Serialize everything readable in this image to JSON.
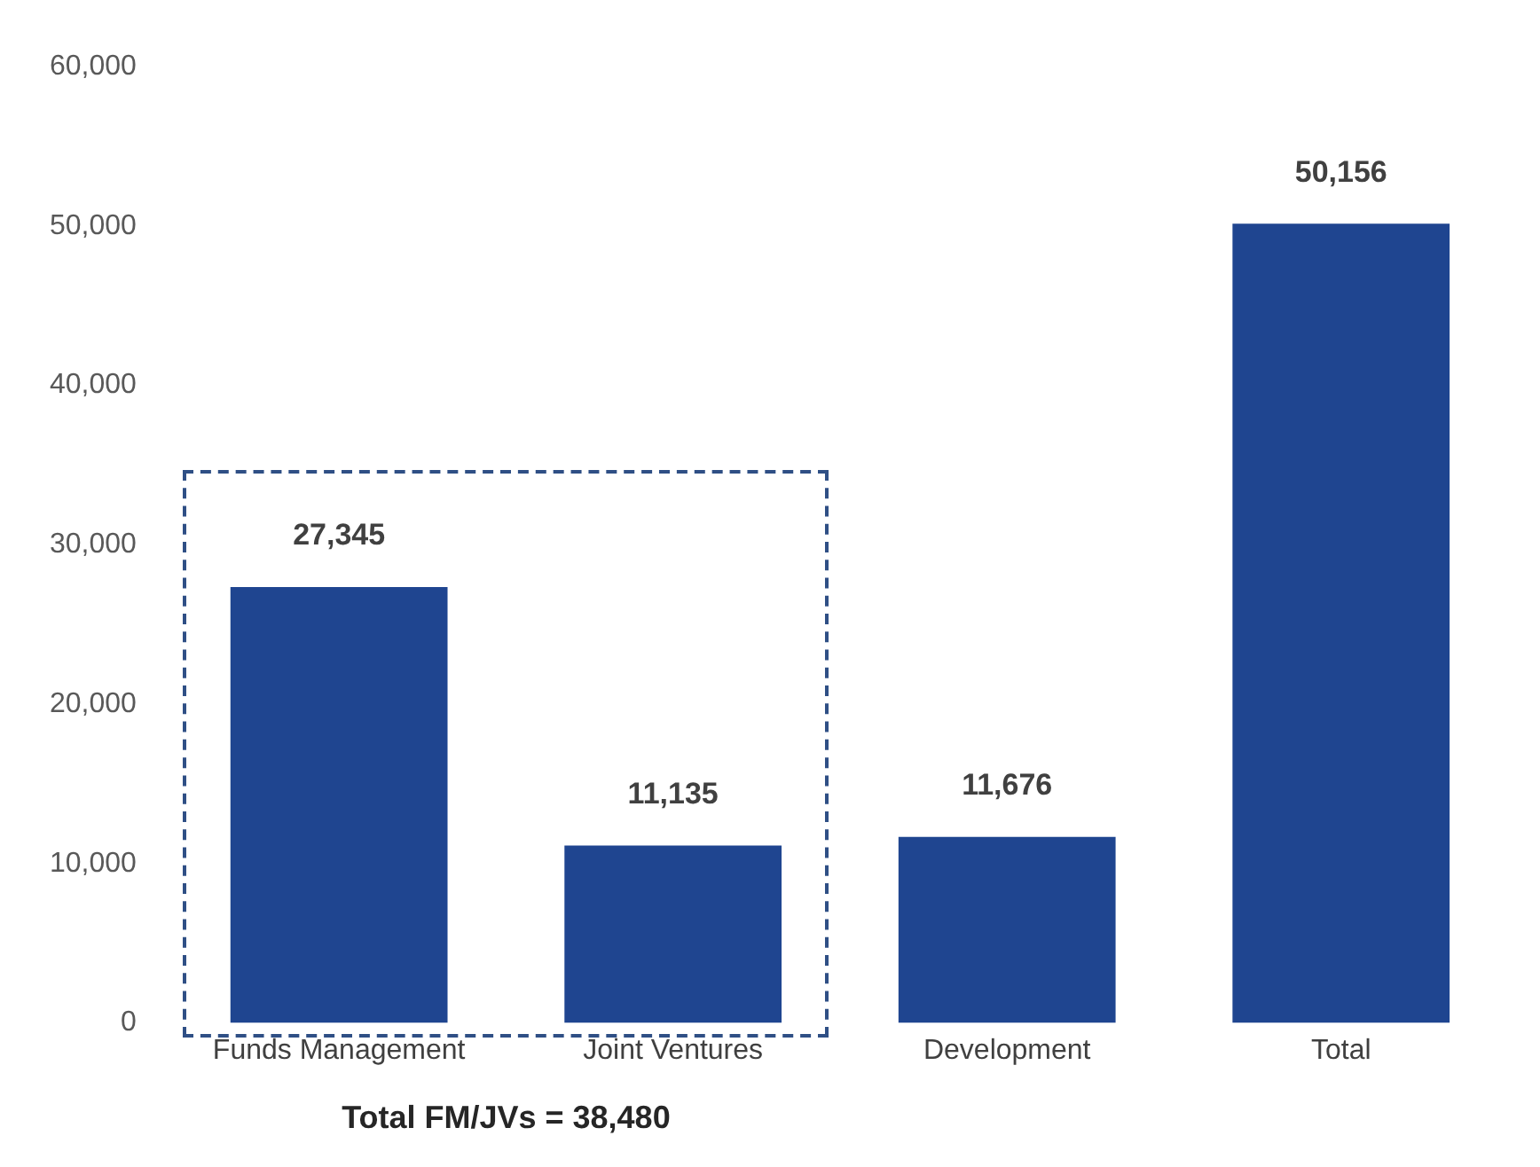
{
  "chart_data": {
    "type": "bar",
    "categories": [
      "Funds Management",
      "Joint Ventures",
      "Development",
      "Total"
    ],
    "values": [
      27345,
      11135,
      11676,
      50156
    ],
    "color": "#1f4590",
    "value_labels": [
      "27,345",
      "11,135",
      "11,676",
      "50,156"
    ],
    "ylim": [
      0,
      60000
    ],
    "yticks": [
      {
        "value": 0,
        "label": "0"
      },
      {
        "value": 10000,
        "label": "10,000"
      },
      {
        "value": 20000,
        "label": "20,000"
      },
      {
        "value": 30000,
        "label": "30,000"
      },
      {
        "value": 40000,
        "label": "40,000"
      },
      {
        "value": 50000,
        "label": "50,000"
      },
      {
        "value": 60000,
        "label": "60,000"
      }
    ],
    "grid": false,
    "legend": false,
    "annotations": [
      "Total FM/JVs = 38,480"
    ]
  }
}
